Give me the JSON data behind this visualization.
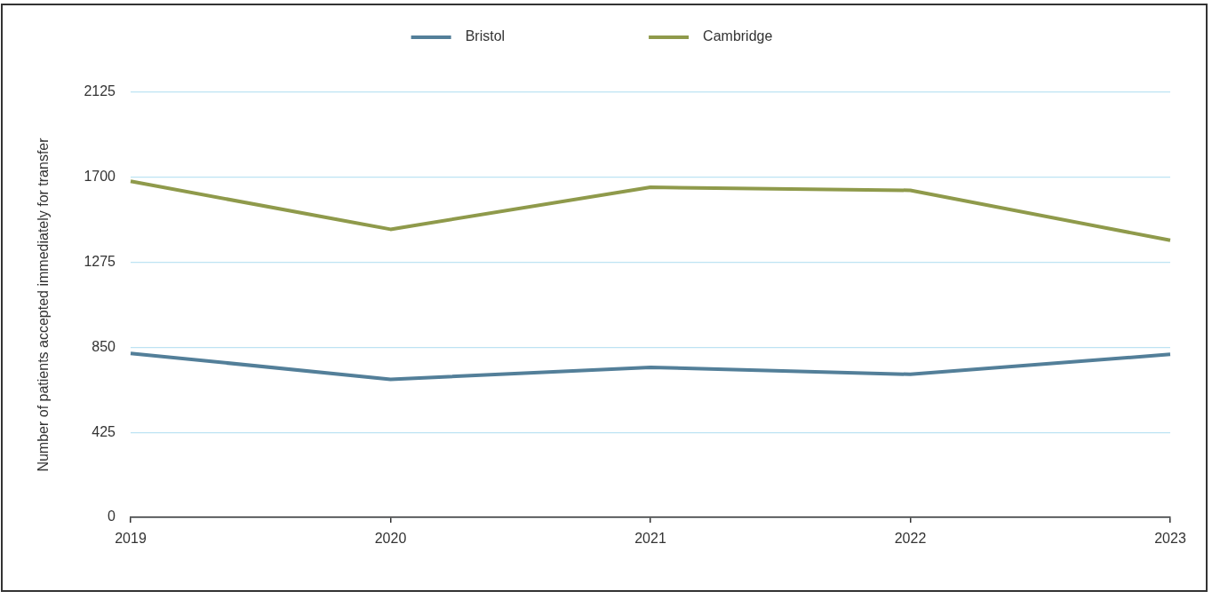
{
  "chart_data": {
    "type": "line",
    "ylabel": "Number of patients accepted immediately for transfer",
    "categories": [
      "2019",
      "2020",
      "2021",
      "2022",
      "2023"
    ],
    "series": [
      {
        "name": "Bristol",
        "color": "#537f99",
        "values": [
          820,
          690,
          750,
          715,
          815
        ]
      },
      {
        "name": "Cambridge",
        "color": "#8f9a4b",
        "values": [
          1680,
          1440,
          1650,
          1635,
          1385
        ]
      }
    ],
    "ylim": [
      0,
      2125
    ],
    "yticks": [
      0,
      425,
      850,
      1275,
      1700,
      2125
    ],
    "grid": "y",
    "legend": "top"
  }
}
